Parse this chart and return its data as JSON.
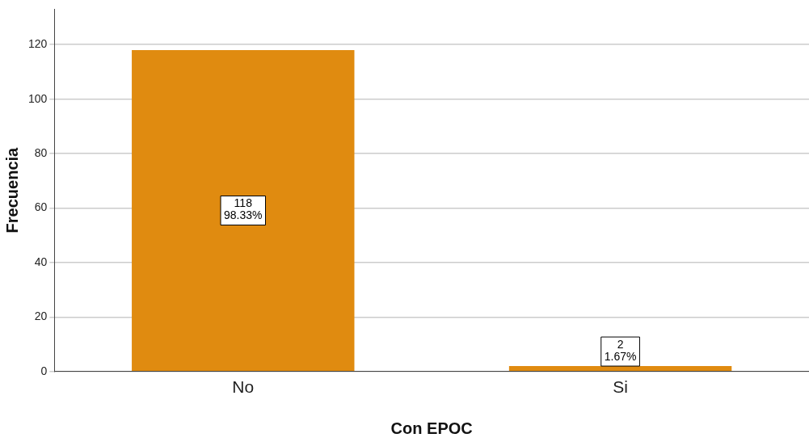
{
  "chart_data": {
    "type": "bar",
    "xlabel": "Con EPOC",
    "ylabel": "Frecuencia",
    "categories": [
      "No",
      "Si"
    ],
    "values": [
      118,
      2
    ],
    "color": "#e08b10",
    "value_labels": [
      "118\n98.33%",
      "2\n1.67%"
    ],
    "ylim": [
      0,
      133
    ],
    "yticks": [
      0,
      20,
      40,
      60,
      80,
      100,
      120
    ],
    "grid": "y",
    "legend": false
  }
}
